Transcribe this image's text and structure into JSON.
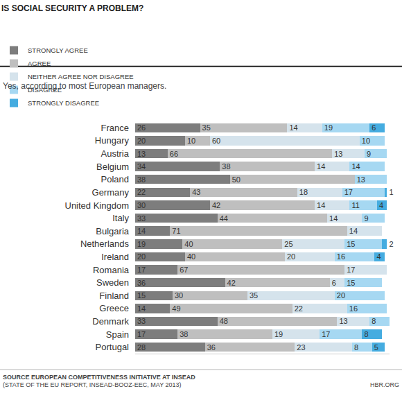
{
  "chart_data": {
    "type": "bar",
    "orientation": "horizontal",
    "stacked": true,
    "data_labels": true,
    "tick_labels": "y",
    "grid": false,
    "legend": "top",
    "title": "IS SOCIAL SECURITY A PROBLEM?",
    "subtitle": "Yes, according to most European managers.",
    "annotations": [
      "SOURCE EUROPEAN COMPETITIVENESS INITIATIVE AT INSEAD",
      "(STATE OF THE EU REPORT, INSEAD-BOOZ-EEC, MAY 2013)",
      "HBR.ORG"
    ],
    "xlim": [
      0,
      102
    ],
    "categories": [
      "France",
      "Hungary",
      "Austria",
      "Belgium",
      "Poland",
      "Germany",
      "United Kingdom",
      "Italy",
      "Bulgaria",
      "Netherlands",
      "Ireland",
      "Romania",
      "Sweden",
      "Finland",
      "Greece",
      "Denmark",
      "Spain",
      "Portugal"
    ],
    "series": [
      {
        "name": "STRONGLY AGREE",
        "color": "#7d7d7d",
        "values": [
          26,
          20,
          13,
          34,
          38,
          22,
          30,
          33,
          14,
          19,
          20,
          17,
          36,
          15,
          14,
          33,
          17,
          28
        ]
      },
      {
        "name": "AGREE",
        "color": "#bfbfbf",
        "values": [
          35,
          10,
          66,
          38,
          50,
          43,
          42,
          44,
          71,
          40,
          40,
          67,
          42,
          30,
          49,
          48,
          38,
          36
        ]
      },
      {
        "name": "NEITHER AGREE NOR DISAGREE",
        "color": "#d5e3ec",
        "values": [
          14,
          60,
          13,
          14,
          null,
          18,
          14,
          14,
          14,
          25,
          20,
          17,
          6,
          35,
          22,
          13,
          19,
          23
        ]
      },
      {
        "name": "DISAGREE",
        "color": "#a6d8f2",
        "values": [
          19,
          10,
          9,
          14,
          13,
          17,
          11,
          9,
          null,
          15,
          16,
          null,
          15,
          20,
          16,
          8,
          17,
          8
        ]
      },
      {
        "name": "STRONGLY DISAGREE",
        "color": "#45ace0",
        "values": [
          6,
          null,
          null,
          null,
          null,
          1,
          4,
          null,
          null,
          2,
          4,
          null,
          null,
          null,
          null,
          null,
          8,
          5
        ]
      }
    ]
  }
}
